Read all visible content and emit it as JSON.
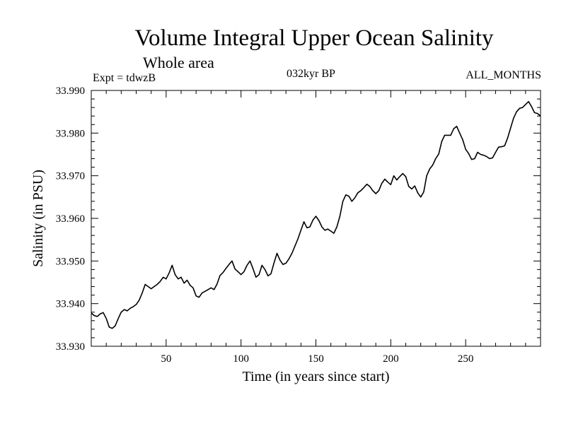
{
  "header": {
    "title": "Volume Integral Upper Ocean Salinity",
    "subtitle": "Whole area",
    "experiment": "Expt = tdwzB",
    "period": "032kyr BP",
    "months": "ALL_MONTHS"
  },
  "chart_data": {
    "type": "line",
    "title": "Volume Integral Upper Ocean Salinity",
    "subtitle": "Whole area",
    "xlabel": "Time (in years since start)",
    "ylabel": "Salinity (in PSU)",
    "xlim": [
      0,
      300
    ],
    "ylim": [
      33.93,
      33.99
    ],
    "xticks": [
      50,
      100,
      150,
      200,
      250
    ],
    "yticks": [
      33.93,
      33.94,
      33.95,
      33.96,
      33.97,
      33.98,
      33.99
    ],
    "ytick_labels": [
      "33.930",
      "33.940",
      "33.950",
      "33.960",
      "33.970",
      "33.980",
      "33.990"
    ],
    "grid": false,
    "line_color": "#000000",
    "series": [
      {
        "x": [
          0,
          2,
          4,
          6,
          8,
          10,
          12,
          14,
          16,
          18,
          20,
          22,
          24,
          26,
          28,
          30,
          32,
          34,
          36,
          38,
          40,
          42,
          44,
          46,
          48,
          50,
          52,
          54,
          56,
          58,
          60,
          62,
          64,
          66,
          68,
          70,
          72,
          74,
          76,
          78,
          80,
          82,
          84,
          86,
          88,
          90,
          92,
          94,
          96,
          98,
          100,
          102,
          104,
          106,
          108,
          110,
          112,
          114,
          116,
          118,
          120,
          122,
          124,
          126,
          128,
          130,
          132,
          134,
          136,
          138,
          140,
          142,
          144,
          146,
          148,
          150,
          152,
          154,
          156,
          158,
          160,
          162,
          164,
          166,
          168,
          170,
          172,
          174,
          176,
          178,
          180,
          182,
          184,
          186,
          188,
          190,
          192,
          194,
          196,
          198,
          200,
          202,
          204,
          206,
          208,
          210,
          212,
          214,
          216,
          218,
          220,
          222,
          224,
          226,
          228,
          230,
          232,
          234,
          236,
          238,
          240,
          242,
          244,
          246,
          248,
          250,
          252,
          254,
          256,
          258,
          260,
          262,
          264,
          266,
          268,
          270,
          272,
          274,
          276,
          278,
          280,
          282,
          284,
          286,
          288,
          290,
          292,
          294,
          296,
          298,
          300
        ],
        "values": [
          33.9378,
          33.9372,
          33.937,
          33.9376,
          33.9379,
          33.9365,
          33.9345,
          33.9342,
          33.9348,
          33.9365,
          33.938,
          33.9386,
          33.9383,
          33.9389,
          33.9393,
          33.9398,
          33.9408,
          33.9425,
          33.9445,
          33.944,
          33.9435,
          33.944,
          33.9445,
          33.9452,
          33.9462,
          33.9458,
          33.9472,
          33.949,
          33.9468,
          33.9458,
          33.9462,
          33.9448,
          33.9455,
          33.9443,
          33.9437,
          33.9418,
          33.9415,
          33.9425,
          33.9429,
          33.9433,
          33.9437,
          33.9433,
          33.9446,
          33.9466,
          33.9473,
          33.9483,
          33.9492,
          33.95,
          33.9481,
          33.9475,
          33.9468,
          33.9475,
          33.949,
          33.95,
          33.9482,
          33.9462,
          33.9468,
          33.949,
          33.948,
          33.9465,
          33.947,
          33.9495,
          33.9518,
          33.9502,
          33.9492,
          33.9495,
          33.9505,
          33.9518,
          33.9535,
          33.9552,
          33.9572,
          33.9592,
          33.9578,
          33.958,
          33.9596,
          33.9605,
          33.9595,
          33.958,
          33.9572,
          33.9575,
          33.957,
          33.9565,
          33.958,
          33.9605,
          33.964,
          33.9655,
          33.9652,
          33.964,
          33.9648,
          33.966,
          33.9665,
          33.9672,
          33.968,
          33.9675,
          33.9665,
          33.9658,
          33.9665,
          33.9682,
          33.9692,
          33.9685,
          33.9679,
          33.97,
          33.969,
          33.9698,
          33.9705,
          33.9698,
          33.9675,
          33.9669,
          33.9676,
          33.966,
          33.965,
          33.9662,
          33.97,
          33.9716,
          33.9725,
          33.974,
          33.9751,
          33.978,
          33.9795,
          33.9795,
          33.9795,
          33.981,
          33.9816,
          33.98,
          33.9785,
          33.9762,
          33.9752,
          33.9738,
          33.974,
          33.9755,
          33.975,
          33.9748,
          33.9745,
          33.974,
          33.9742,
          33.9755,
          33.9767,
          33.9768,
          33.977,
          33.9788,
          33.9812,
          33.9835,
          33.985,
          33.9858,
          33.986,
          33.9867,
          33.9874,
          33.9862,
          33.9848,
          33.9846,
          33.984
        ]
      }
    ]
  }
}
